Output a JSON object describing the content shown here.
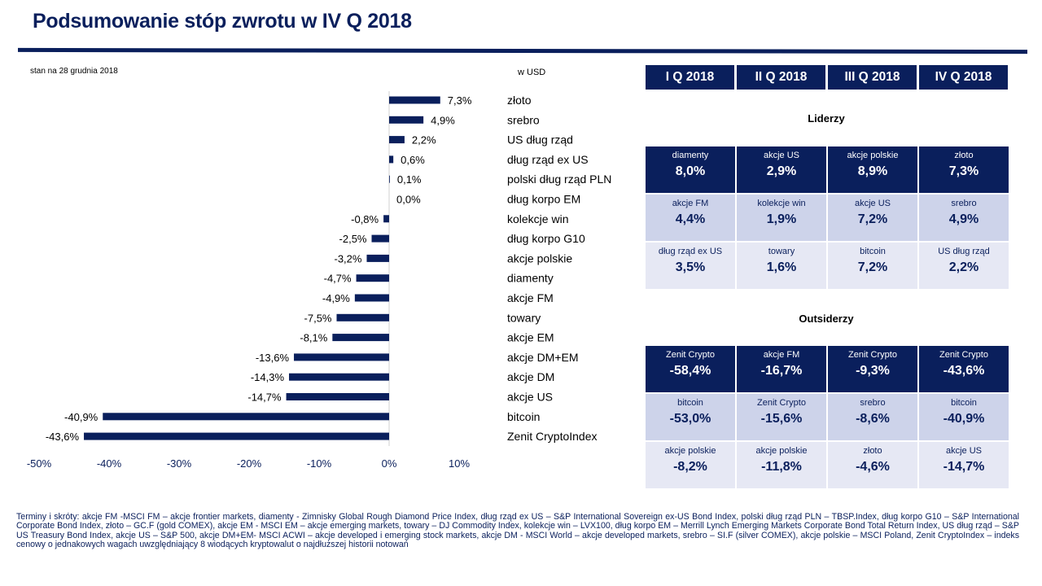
{
  "title": "Podsumowanie stóp zwrotu w IV Q 2018",
  "as_of": "stan na 28 grudnia 2018",
  "unit_label": "w USD",
  "colors": {
    "navy": "#0a1f5c",
    "light": "#cdd3ea",
    "lighter": "#e6e8f4"
  },
  "chart_data": {
    "type": "bar",
    "orientation": "horizontal",
    "categories": [
      "złoto",
      "srebro",
      "US dług rząd",
      "dług rząd ex US",
      "polski dług rząd PLN",
      "dług korpo EM",
      "kolekcje win",
      "dług korpo G10",
      "akcje polskie",
      "diamenty",
      "akcje FM",
      "towary",
      "akcje EM",
      "akcje DM+EM",
      "akcje DM",
      "akcje US",
      "bitcoin",
      "Zenit CryptoIndex"
    ],
    "values": [
      7.3,
      4.9,
      2.2,
      0.6,
      0.1,
      0.0,
      -0.8,
      -2.5,
      -3.2,
      -4.7,
      -4.9,
      -7.5,
      -8.1,
      -13.6,
      -14.3,
      -14.7,
      -40.9,
      -43.6
    ],
    "value_labels": [
      "7,3%",
      "4,9%",
      "2,2%",
      "0,6%",
      "0,1%",
      "0,0%",
      "-0,8%",
      "-2,5%",
      "-3,2%",
      "-4,7%",
      "-4,9%",
      "-7,5%",
      "-8,1%",
      "-13,6%",
      "-14,3%",
      "-14,7%",
      "-40,9%",
      "-43,6%"
    ],
    "xlim": [
      -50,
      10
    ],
    "xticks": [
      -50,
      -40,
      -30,
      -20,
      -10,
      0,
      10
    ],
    "xtick_labels": [
      "-50%",
      "-40%",
      "-30%",
      "-20%",
      "-10%",
      "0%",
      "10%"
    ],
    "grid": false,
    "color": "#0a1f5c"
  },
  "quarters": [
    "I Q 2018",
    "II Q 2018",
    "III Q 2018",
    "IV Q 2018"
  ],
  "leaders": {
    "title": "Liderzy",
    "rows": [
      [
        {
          "name": "diamenty",
          "value": "8,0%"
        },
        {
          "name": "akcje US",
          "value": "2,9%"
        },
        {
          "name": "akcje polskie",
          "value": "8,9%"
        },
        {
          "name": "złoto",
          "value": "7,3%"
        }
      ],
      [
        {
          "name": "akcje FM",
          "value": "4,4%"
        },
        {
          "name": "kolekcje win",
          "value": "1,9%"
        },
        {
          "name": "akcje US",
          "value": "7,2%"
        },
        {
          "name": "srebro",
          "value": "4,9%"
        }
      ],
      [
        {
          "name": "dług rząd ex US",
          "value": "3,5%"
        },
        {
          "name": "towary",
          "value": "1,6%"
        },
        {
          "name": "bitcoin",
          "value": "7,2%"
        },
        {
          "name": "US dług rząd",
          "value": "2,2%"
        }
      ]
    ]
  },
  "outsiders": {
    "title": "Outsiderzy",
    "rows": [
      [
        {
          "name": "Zenit Crypto",
          "value": "-58,4%"
        },
        {
          "name": "akcje FM",
          "value": "-16,7%"
        },
        {
          "name": "Zenit Crypto",
          "value": "-9,3%"
        },
        {
          "name": "Zenit Crypto",
          "value": "-43,6%"
        }
      ],
      [
        {
          "name": "bitcoin",
          "value": "-53,0%"
        },
        {
          "name": "Zenit Crypto",
          "value": "-15,6%"
        },
        {
          "name": "srebro",
          "value": "-8,6%"
        },
        {
          "name": "bitcoin",
          "value": "-40,9%"
        }
      ],
      [
        {
          "name": "akcje polskie",
          "value": "-8,2%"
        },
        {
          "name": "akcje polskie",
          "value": "-11,8%"
        },
        {
          "name": "złoto",
          "value": "-4,6%"
        },
        {
          "name": "akcje US",
          "value": "-14,7%"
        }
      ]
    ]
  },
  "footnote": "Terminy i skróty: akcje FM -MSCI FM – akcje frontier markets, diamenty - Zimnisky Global Rough Diamond Price Index, dług rząd ex US – S&P International Sovereign ex-US Bond Index, polski dług rząd PLN – TBSP.Index, dług korpo G10 – S&P International Corporate Bond Index, złoto – GC.F (gold COMEX), akcje EM - MSCI EM – akcje emerging markets, towary – DJ Commodity Index, kolekcje win – LVX100, dług korpo EM – Merrill Lynch Emerging Markets Corporate Bond Total Return Index, US dług rząd – S&P US Treasury Bond Index, akcje US – S&P 500, akcje DM+EM- MSCI ACWI – akcje developed i emerging stock markets, akcje DM - MSCI World – akcje developed markets, srebro – SI.F (silver COMEX), akcje polskie – MSCI Poland, Zenit CryptoIndex – indeks cenowy o jednakowych wagach uwzględniający 8 wiodących kryptowalut o najdłuższej historii notowań"
}
